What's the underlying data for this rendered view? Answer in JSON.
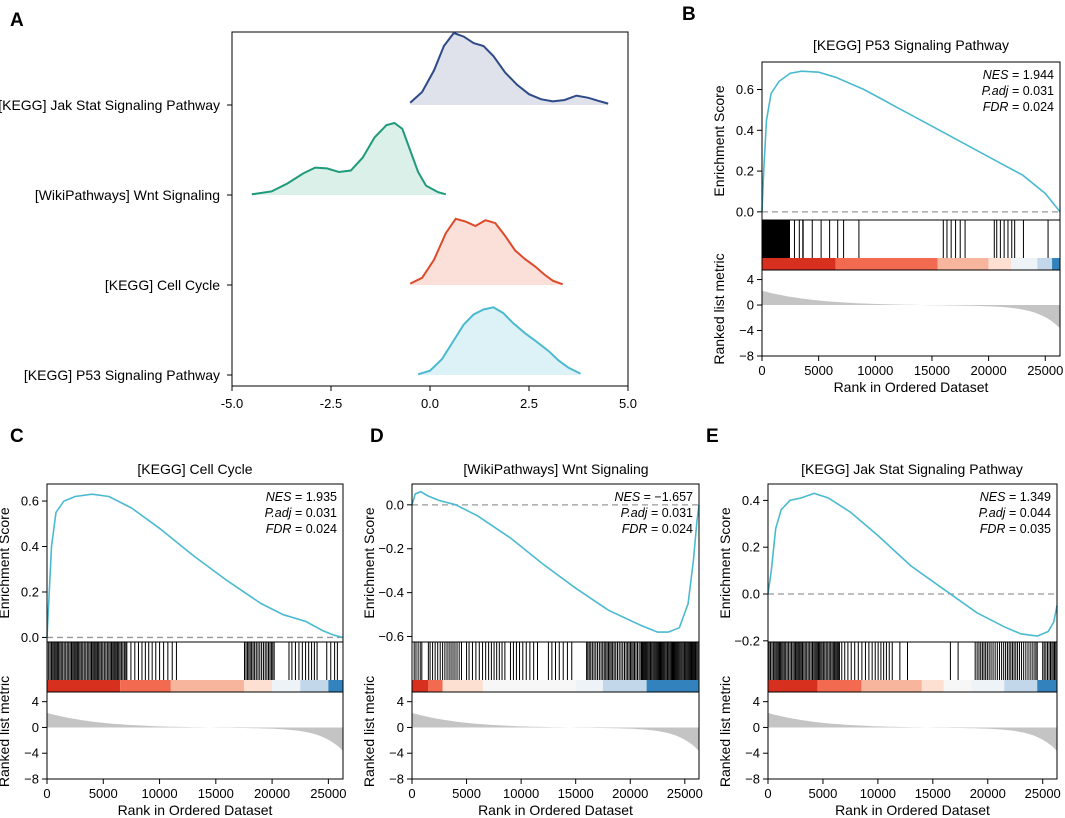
{
  "colors": {
    "es_line": "#4bbad0",
    "zero_line": "#999999",
    "ranked_fill": "#c4c4c4",
    "heat_red": "#d7301f",
    "heat_salmon": "#f6a78a",
    "heat_white": "#f7f7f7",
    "heat_lightblue": "#c2d8ea",
    "heat_blue": "#3182bd",
    "ridge_jak": "#2e4a87",
    "ridge_wnt": "#1f9a7a",
    "ridge_cell": "#dd4a2b",
    "ridge_p53": "#4bbad0"
  },
  "chart_data": [
    {
      "panel": "A",
      "type": "ridgeline",
      "xlim": [
        -5.0,
        5.0
      ],
      "xticks": [
        "-5.0",
        "-2.5",
        "0.0",
        "2.5",
        "5.0"
      ],
      "tick_values": [
        -5.0,
        -2.5,
        0.0,
        2.5,
        5.0
      ],
      "series": [
        {
          "name": "[KEGG] Jak Stat Signaling Pathway",
          "color": "#2e4a87",
          "fill": "#dfe2ea",
          "x": [
            -0.5,
            -0.2,
            0.1,
            0.35,
            0.6,
            0.85,
            1.1,
            1.35,
            1.6,
            1.9,
            2.2,
            2.5,
            2.8,
            3.1,
            3.4,
            3.7,
            4.0,
            4.3,
            4.5
          ],
          "d": [
            0.03,
            0.18,
            0.48,
            0.82,
            1.0,
            0.95,
            0.86,
            0.82,
            0.68,
            0.45,
            0.28,
            0.15,
            0.08,
            0.05,
            0.07,
            0.13,
            0.1,
            0.05,
            0.02
          ]
        },
        {
          "name": "[WikiPathways] Wnt Signaling",
          "color": "#1f9a7a",
          "fill": "#dcf0ea",
          "x": [
            -4.5,
            -4.0,
            -3.6,
            -3.2,
            -2.9,
            -2.6,
            -2.3,
            -2.0,
            -1.7,
            -1.4,
            -1.1,
            -0.9,
            -0.7,
            -0.5,
            -0.3,
            -0.1,
            0.2,
            0.4
          ],
          "d": [
            0.01,
            0.05,
            0.16,
            0.3,
            0.38,
            0.37,
            0.32,
            0.34,
            0.52,
            0.8,
            0.97,
            1.0,
            0.92,
            0.62,
            0.32,
            0.13,
            0.04,
            0.01
          ]
        },
        {
          "name": "[KEGG] Cell Cycle",
          "color": "#dd4a2b",
          "fill": "#fbe0da",
          "x": [
            -0.5,
            -0.2,
            0.1,
            0.4,
            0.65,
            0.9,
            1.15,
            1.4,
            1.65,
            1.9,
            2.15,
            2.4,
            2.65,
            2.9,
            3.1,
            3.35
          ],
          "d": [
            0.02,
            0.1,
            0.35,
            0.72,
            0.92,
            0.88,
            0.82,
            0.9,
            0.86,
            0.68,
            0.48,
            0.36,
            0.26,
            0.14,
            0.06,
            0.01
          ]
        },
        {
          "name": "[KEGG] P53 Signaling Pathway",
          "color": "#4bbad0",
          "fill": "#dcf2f6",
          "x": [
            -0.3,
            0.0,
            0.3,
            0.6,
            0.85,
            1.1,
            1.35,
            1.6,
            1.85,
            2.1,
            2.4,
            2.7,
            3.0,
            3.25,
            3.5,
            3.8
          ],
          "d": [
            0.01,
            0.06,
            0.22,
            0.48,
            0.7,
            0.84,
            0.91,
            0.94,
            0.86,
            0.72,
            0.58,
            0.46,
            0.33,
            0.2,
            0.1,
            0.02
          ]
        }
      ]
    },
    {
      "panel": "B",
      "type": "gsea",
      "title": "[KEGG] P53 Signaling Pathway",
      "ylabel": "Enrichment Score",
      "ylabel2": "Ranked list metric",
      "xlabel": "Rank in Ordered Dataset",
      "ylim": [
        -0.04,
        0.735
      ],
      "yticks": [
        0.0,
        0.2,
        0.4,
        0.6
      ],
      "ytick_labels": [
        "0.0",
        "0.2",
        "0.4",
        "0.6"
      ],
      "xlim": [
        0,
        26300
      ],
      "xticks": [
        0,
        5000,
        10000,
        15000,
        20000,
        25000
      ],
      "xtick_labels": [
        "0",
        "5000",
        "10000",
        "15000",
        "20000",
        "25000"
      ],
      "rank_ylim": [
        -8,
        5.5
      ],
      "rank_yticks": [
        4,
        0,
        -4,
        -8
      ],
      "rank_ytick_labels": [
        "4",
        "0",
        "−4",
        "−8"
      ],
      "nes_label": "NES",
      "nes_value": "1.944",
      "padj_label": "P.adj",
      "padj_value": "0.031",
      "fdr_label": "FDR",
      "fdr_value": "0.024",
      "es_curve": [
        [
          0,
          0
        ],
        [
          150,
          0.2
        ],
        [
          400,
          0.45
        ],
        [
          800,
          0.58
        ],
        [
          1500,
          0.64
        ],
        [
          2500,
          0.68
        ],
        [
          3500,
          0.69
        ],
        [
          5000,
          0.685
        ],
        [
          6500,
          0.66
        ],
        [
          9000,
          0.6
        ],
        [
          12000,
          0.51
        ],
        [
          15000,
          0.42
        ],
        [
          18000,
          0.33
        ],
        [
          21000,
          0.24
        ],
        [
          23000,
          0.18
        ],
        [
          25000,
          0.09
        ],
        [
          26300,
          0.0
        ]
      ],
      "hit_ranges": [
        [
          0,
          2400,
          95
        ],
        [
          2400,
          3600,
          4
        ],
        [
          3600,
          7200,
          6
        ],
        [
          8500,
          8700,
          1
        ],
        [
          16000,
          18000,
          6
        ],
        [
          20500,
          22300,
          7
        ],
        [
          23000,
          23300,
          1
        ],
        [
          25200,
          25500,
          1
        ]
      ],
      "heat_segments": [
        [
          0,
          6500,
          "#d7301f"
        ],
        [
          6500,
          15500,
          "#f26a4f"
        ],
        [
          15500,
          20000,
          "#f6b59c"
        ],
        [
          20000,
          22000,
          "#fde0d2"
        ],
        [
          22000,
          24300,
          "#eef3f8"
        ],
        [
          24300,
          25600,
          "#c2d8ea"
        ],
        [
          25600,
          26300,
          "#3182bd"
        ]
      ]
    },
    {
      "panel": "C",
      "type": "gsea",
      "title": "[KEGG] Cell Cycle",
      "ylabel": "Enrichment Score",
      "ylabel2": "Ranked list metric",
      "xlabel": "Rank in Ordered Dataset",
      "ylim": [
        -0.02,
        0.675
      ],
      "yticks": [
        0.0,
        0.2,
        0.4,
        0.6
      ],
      "ytick_labels": [
        "0.0",
        "0.2",
        "0.4",
        "0.6"
      ],
      "xlim": [
        0,
        26300
      ],
      "xticks": [
        0,
        5000,
        10000,
        15000,
        20000,
        25000
      ],
      "xtick_labels": [
        "0",
        "5000",
        "10000",
        "15000",
        "20000",
        "25000"
      ],
      "rank_ylim": [
        -8,
        5.5
      ],
      "rank_yticks": [
        4,
        0,
        -4,
        -8
      ],
      "rank_ytick_labels": [
        "4",
        "0",
        "−4",
        "−8"
      ],
      "nes_label": "NES",
      "nes_value": "1.935",
      "padj_label": "P.adj",
      "padj_value": "0.031",
      "fdr_label": "FDR",
      "fdr_value": "0.024",
      "es_curve": [
        [
          0,
          0
        ],
        [
          150,
          0.15
        ],
        [
          400,
          0.4
        ],
        [
          800,
          0.55
        ],
        [
          1500,
          0.6
        ],
        [
          2500,
          0.62
        ],
        [
          4000,
          0.63
        ],
        [
          5500,
          0.62
        ],
        [
          7500,
          0.57
        ],
        [
          10000,
          0.48
        ],
        [
          13000,
          0.36
        ],
        [
          16000,
          0.25
        ],
        [
          19000,
          0.15
        ],
        [
          21000,
          0.1
        ],
        [
          23000,
          0.07
        ],
        [
          24500,
          0.03
        ],
        [
          25500,
          0.01
        ],
        [
          26300,
          0.0
        ]
      ],
      "hit_ranges": [
        [
          0,
          7000,
          60
        ],
        [
          7000,
          11500,
          14
        ],
        [
          17500,
          20200,
          20
        ],
        [
          21500,
          24000,
          10
        ],
        [
          24800,
          25800,
          4
        ]
      ],
      "heat_segments": [
        [
          0,
          6500,
          "#d7301f"
        ],
        [
          6500,
          11000,
          "#f26a4f"
        ],
        [
          11000,
          17500,
          "#f6b59c"
        ],
        [
          17500,
          20000,
          "#fde0d2"
        ],
        [
          20000,
          22500,
          "#eef3f8"
        ],
        [
          22500,
          25000,
          "#c2d8ea"
        ],
        [
          25000,
          26300,
          "#3182bd"
        ]
      ]
    },
    {
      "panel": "D",
      "type": "gsea",
      "title": "[WikiPathways] Wnt Signaling",
      "ylabel": "Enrichment Score",
      "ylabel2": "Ranked list metric",
      "xlabel": "Rank in Ordered Dataset",
      "ylim": [
        -0.625,
        0.095
      ],
      "yticks": [
        0.0,
        -0.2,
        -0.4,
        -0.6
      ],
      "ytick_labels": [
        "0.0",
        "−0.2",
        "−0.4",
        "−0.6"
      ],
      "xlim": [
        0,
        26300
      ],
      "xticks": [
        0,
        5000,
        10000,
        15000,
        20000,
        25000
      ],
      "xtick_labels": [
        "0",
        "5000",
        "10000",
        "15000",
        "20000",
        "25000"
      ],
      "rank_ylim": [
        -8,
        5.5
      ],
      "rank_yticks": [
        4,
        0,
        -4,
        -8
      ],
      "rank_ytick_labels": [
        "4",
        "0",
        "−4",
        "−8"
      ],
      "nes_label": "NES",
      "nes_value": "−1.657",
      "padj_label": "P.adj",
      "padj_value": "0.031",
      "fdr_label": "FDR",
      "fdr_value": "0.024",
      "es_curve": [
        [
          0,
          0
        ],
        [
          300,
          0.05
        ],
        [
          800,
          0.06
        ],
        [
          1500,
          0.04
        ],
        [
          2500,
          0.02
        ],
        [
          4000,
          0.0
        ],
        [
          6000,
          -0.05
        ],
        [
          9000,
          -0.15
        ],
        [
          12000,
          -0.27
        ],
        [
          15000,
          -0.38
        ],
        [
          18000,
          -0.48
        ],
        [
          21000,
          -0.55
        ],
        [
          22500,
          -0.58
        ],
        [
          23500,
          -0.58
        ],
        [
          24500,
          -0.56
        ],
        [
          25300,
          -0.45
        ],
        [
          25800,
          -0.25
        ],
        [
          26100,
          -0.08
        ],
        [
          26300,
          0.0
        ]
      ],
      "hit_ranges": [
        [
          200,
          900,
          5
        ],
        [
          1500,
          4600,
          16
        ],
        [
          5000,
          8600,
          14
        ],
        [
          9000,
          11500,
          9
        ],
        [
          12500,
          14700,
          7
        ],
        [
          16000,
          21000,
          36
        ],
        [
          21000,
          26300,
          56
        ]
      ],
      "heat_segments": [
        [
          0,
          1500,
          "#d7301f"
        ],
        [
          1500,
          2800,
          "#f26a4f"
        ],
        [
          2800,
          6500,
          "#fde0d2"
        ],
        [
          6500,
          15000,
          "#f7f7f7"
        ],
        [
          15000,
          17500,
          "#eef3f8"
        ],
        [
          17500,
          21500,
          "#c2d8ea"
        ],
        [
          21500,
          26300,
          "#3182bd"
        ]
      ]
    },
    {
      "panel": "E",
      "type": "gsea",
      "title": "[KEGG] Jak Stat Signaling Pathway",
      "ylabel": "Enrichment Score",
      "ylabel2": "Ranked list metric",
      "xlabel": "Rank in Ordered Dataset",
      "ylim": [
        -0.205,
        0.47
      ],
      "yticks": [
        0.4,
        0.2,
        0.0,
        -0.2
      ],
      "ytick_labels": [
        "0.4",
        "0.2",
        "0.0",
        "−0.2"
      ],
      "xlim": [
        0,
        26300
      ],
      "xticks": [
        0,
        5000,
        10000,
        15000,
        20000,
        25000
      ],
      "xtick_labels": [
        "0",
        "5000",
        "10000",
        "15000",
        "20000",
        "25000"
      ],
      "rank_ylim": [
        -8,
        5.5
      ],
      "rank_yticks": [
        4,
        0,
        -4,
        -8
      ],
      "rank_ytick_labels": [
        "4",
        "0",
        "−4",
        "−8"
      ],
      "nes_label": "NES",
      "nes_value": "1.349",
      "padj_label": "P.adj",
      "padj_value": "0.044",
      "fdr_label": "FDR",
      "fdr_value": "0.035",
      "es_curve": [
        [
          0,
          0
        ],
        [
          300,
          0.1
        ],
        [
          700,
          0.28
        ],
        [
          1200,
          0.36
        ],
        [
          2000,
          0.4
        ],
        [
          3000,
          0.41
        ],
        [
          4200,
          0.43
        ],
        [
          5500,
          0.41
        ],
        [
          7500,
          0.35
        ],
        [
          10000,
          0.25
        ],
        [
          13000,
          0.12
        ],
        [
          16000,
          0.02
        ],
        [
          19000,
          -0.08
        ],
        [
          21500,
          -0.14
        ],
        [
          23000,
          -0.17
        ],
        [
          24500,
          -0.18
        ],
        [
          25500,
          -0.16
        ],
        [
          26000,
          -0.12
        ],
        [
          26300,
          -0.05
        ]
      ],
      "hit_ranges": [
        [
          100,
          6500,
          55
        ],
        [
          6500,
          11400,
          18
        ],
        [
          12000,
          12700,
          2
        ],
        [
          16500,
          17300,
          2
        ],
        [
          18800,
          24500,
          34
        ],
        [
          25000,
          26200,
          10
        ]
      ],
      "heat_segments": [
        [
          0,
          4500,
          "#d7301f"
        ],
        [
          4500,
          8500,
          "#f26a4f"
        ],
        [
          8500,
          14000,
          "#f6b59c"
        ],
        [
          14000,
          16000,
          "#fde0d2"
        ],
        [
          16000,
          18500,
          "#f7f7f7"
        ],
        [
          18500,
          21500,
          "#eef3f8"
        ],
        [
          21500,
          24500,
          "#c2d8ea"
        ],
        [
          24500,
          26300,
          "#3182bd"
        ]
      ]
    }
  ]
}
